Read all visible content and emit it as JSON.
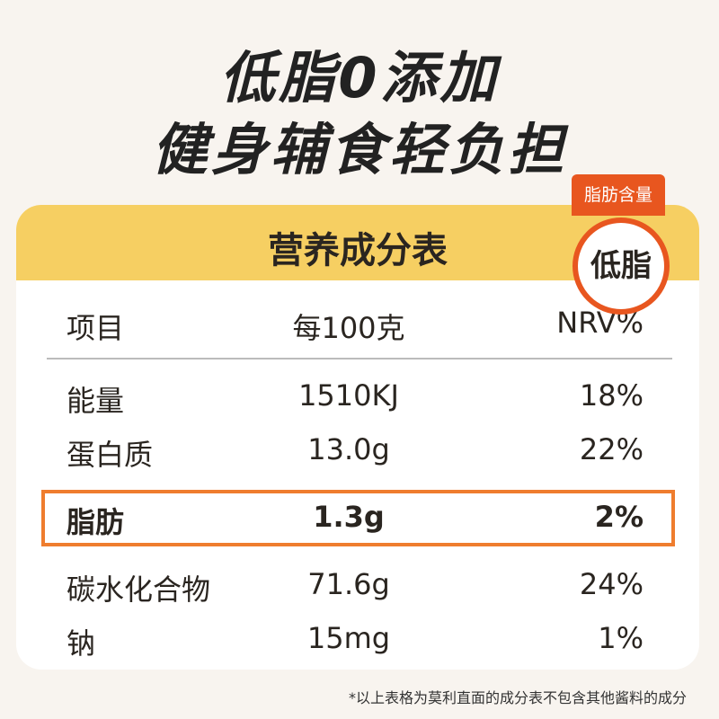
{
  "headline": [
    "低脂0添加",
    "健身辅食轻负担"
  ],
  "badge": {
    "label": "脂肪含量",
    "value": "低脂"
  },
  "table": {
    "title": "营养成分表",
    "header": [
      "项目",
      "每100克",
      "NRV%"
    ],
    "rows": [
      [
        "能量",
        "1510KJ",
        "18%"
      ],
      [
        "蛋白质",
        "13.0g",
        "22%"
      ],
      [
        "脂肪",
        "1.3g",
        "2%"
      ],
      [
        "碳水化合物",
        "71.6g",
        "24%"
      ],
      [
        "钠",
        "15mg",
        "1%"
      ]
    ],
    "highlight_row": 2
  },
  "footnote": "*以上表格为莫利直面的成分表不包含其他酱料的成分"
}
